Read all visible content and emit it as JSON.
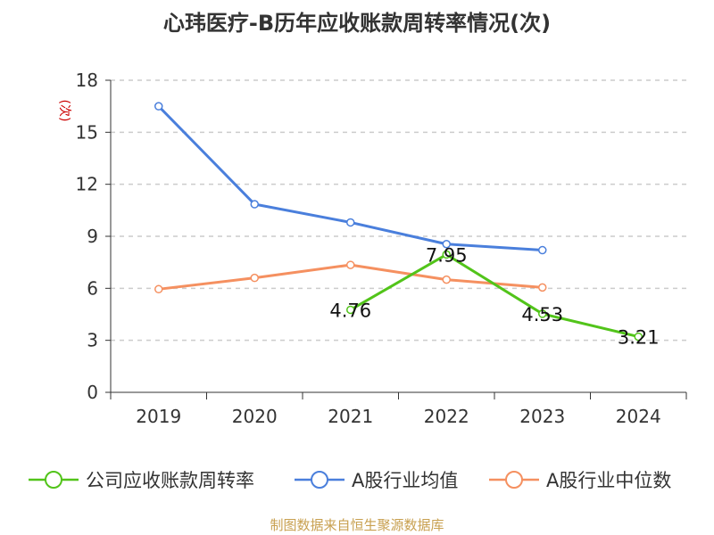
{
  "title": "心玮医疗-B历年应收账款周转率情况(次)",
  "source": "制图数据来自恒生聚源数据库",
  "chart_data": {
    "type": "line",
    "title": "心玮医疗-B历年应收账款周转率情况(次)",
    "xlabel": "",
    "ylabel": "(次)",
    "categories": [
      "2019",
      "2020",
      "2021",
      "2022",
      "2023",
      "2024"
    ],
    "y_ticks": [
      "0",
      "3",
      "6",
      "9",
      "12",
      "15",
      "18"
    ],
    "ylim": [
      0,
      18
    ],
    "grid": true,
    "legend_position": "bottom",
    "series": [
      {
        "name": "公司应收账款周转率",
        "color": "#52c41a",
        "values": [
          null,
          null,
          4.76,
          7.95,
          4.53,
          3.21
        ],
        "labels": [
          "",
          "",
          "4.76",
          "7.95",
          "4.53",
          "3.21"
        ]
      },
      {
        "name": "A股行业均值",
        "color": "#4a7fdc",
        "values": [
          16.5,
          10.85,
          9.8,
          8.55,
          8.2,
          null
        ],
        "labels": [
          "",
          "",
          "",
          "",
          "",
          ""
        ]
      },
      {
        "name": "A股行业中位数",
        "color": "#f59060",
        "values": [
          5.95,
          6.6,
          7.35,
          6.5,
          6.05,
          null
        ],
        "labels": [
          "",
          "",
          "",
          "",
          "",
          ""
        ]
      }
    ]
  }
}
